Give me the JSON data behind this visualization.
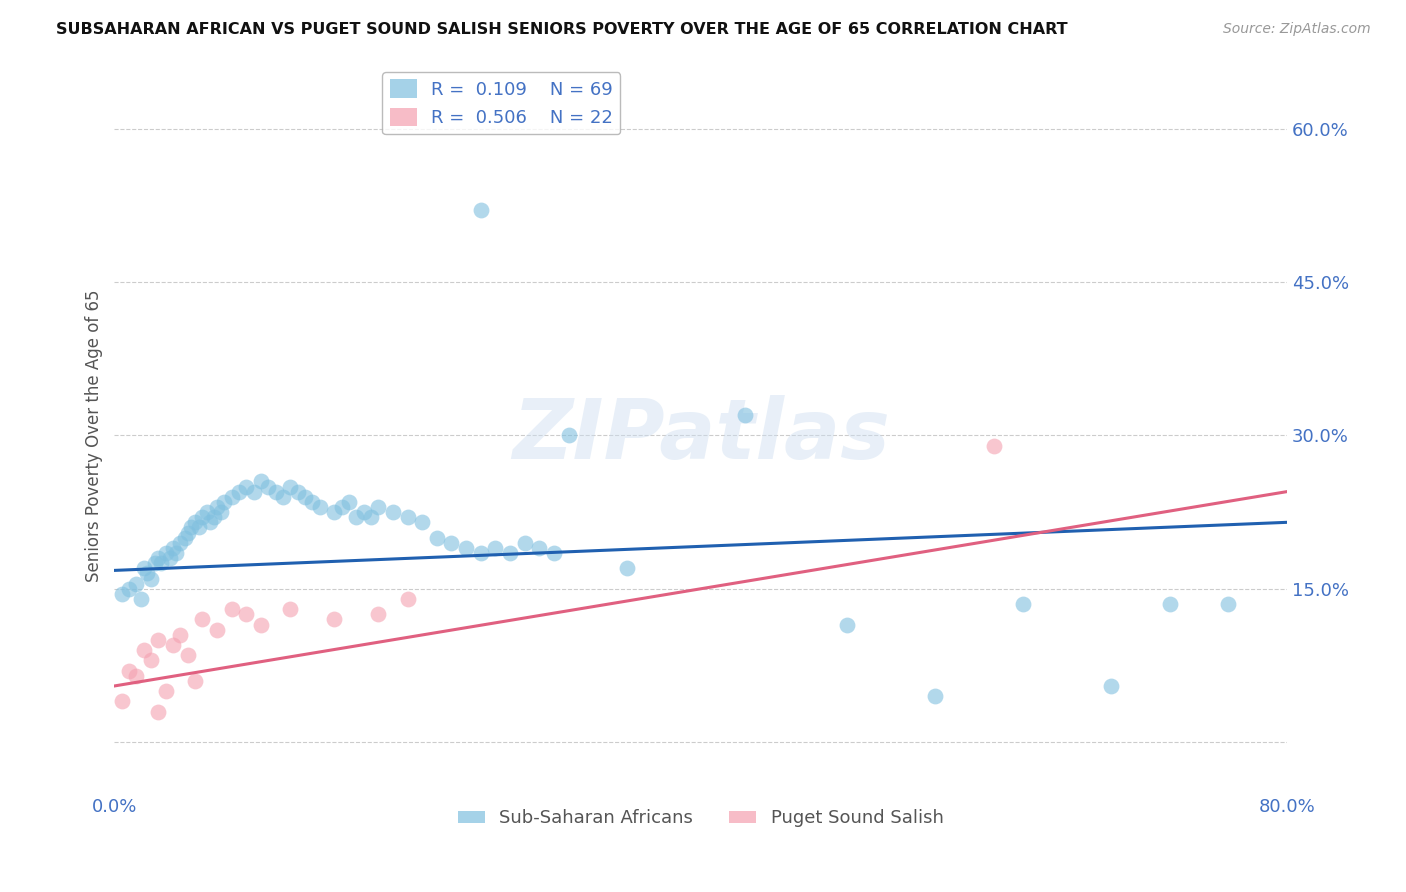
{
  "title": "SUBSAHARAN AFRICAN VS PUGET SOUND SALISH SENIORS POVERTY OVER THE AGE OF 65 CORRELATION CHART",
  "source": "Source: ZipAtlas.com",
  "ylabel": "Seniors Poverty Over the Age of 65",
  "xlim": [
    0.0,
    0.8
  ],
  "ylim": [
    -0.05,
    0.65
  ],
  "yticks": [
    0.0,
    0.15,
    0.3,
    0.45,
    0.6
  ],
  "ytick_labels": [
    "",
    "15.0%",
    "30.0%",
    "45.0%",
    "60.0%"
  ],
  "xticks": [
    0.0,
    0.2,
    0.4,
    0.6,
    0.8
  ],
  "xtick_labels": [
    "0.0%",
    "",
    "",
    "",
    "80.0%"
  ],
  "blue_R": 0.109,
  "blue_N": 69,
  "pink_R": 0.506,
  "pink_N": 22,
  "blue_color": "#7fbfdf",
  "pink_color": "#f4a0b0",
  "line_blue": "#2060b0",
  "line_pink": "#e06080",
  "blue_scatter_x": [
    0.005,
    0.01,
    0.015,
    0.018,
    0.02,
    0.022,
    0.025,
    0.028,
    0.03,
    0.032,
    0.035,
    0.038,
    0.04,
    0.042,
    0.045,
    0.048,
    0.05,
    0.052,
    0.055,
    0.058,
    0.06,
    0.063,
    0.065,
    0.068,
    0.07,
    0.073,
    0.075,
    0.08,
    0.085,
    0.09,
    0.095,
    0.1,
    0.105,
    0.11,
    0.115,
    0.12,
    0.125,
    0.13,
    0.135,
    0.14,
    0.15,
    0.155,
    0.16,
    0.165,
    0.17,
    0.175,
    0.18,
    0.19,
    0.2,
    0.21,
    0.22,
    0.23,
    0.24,
    0.25,
    0.26,
    0.27,
    0.28,
    0.29,
    0.3,
    0.31,
    0.35,
    0.43,
    0.5,
    0.56,
    0.62,
    0.68,
    0.72,
    0.76,
    0.25
  ],
  "blue_scatter_y": [
    0.145,
    0.15,
    0.155,
    0.14,
    0.17,
    0.165,
    0.16,
    0.175,
    0.18,
    0.175,
    0.185,
    0.18,
    0.19,
    0.185,
    0.195,
    0.2,
    0.205,
    0.21,
    0.215,
    0.21,
    0.22,
    0.225,
    0.215,
    0.22,
    0.23,
    0.225,
    0.235,
    0.24,
    0.245,
    0.25,
    0.245,
    0.255,
    0.25,
    0.245,
    0.24,
    0.25,
    0.245,
    0.24,
    0.235,
    0.23,
    0.225,
    0.23,
    0.235,
    0.22,
    0.225,
    0.22,
    0.23,
    0.225,
    0.22,
    0.215,
    0.2,
    0.195,
    0.19,
    0.185,
    0.19,
    0.185,
    0.195,
    0.19,
    0.185,
    0.3,
    0.17,
    0.32,
    0.115,
    0.045,
    0.135,
    0.055,
    0.135,
    0.135,
    0.52
  ],
  "pink_scatter_x": [
    0.005,
    0.01,
    0.015,
    0.02,
    0.025,
    0.03,
    0.035,
    0.04,
    0.045,
    0.05,
    0.06,
    0.07,
    0.08,
    0.09,
    0.1,
    0.12,
    0.15,
    0.18,
    0.2,
    0.6,
    0.03,
    0.055
  ],
  "pink_scatter_y": [
    0.04,
    0.07,
    0.065,
    0.09,
    0.08,
    0.1,
    0.05,
    0.095,
    0.105,
    0.085,
    0.12,
    0.11,
    0.13,
    0.125,
    0.115,
    0.13,
    0.12,
    0.125,
    0.14,
    0.29,
    0.03,
    0.06
  ],
  "blue_line_x": [
    0.0,
    0.8
  ],
  "blue_line_y": [
    0.168,
    0.215
  ],
  "pink_line_x": [
    0.0,
    0.8
  ],
  "pink_line_y": [
    0.055,
    0.245
  ],
  "legend_label_blue": "Sub-Saharan Africans",
  "legend_label_pink": "Puget Sound Salish",
  "watermark": "ZIPatlas",
  "background_color": "#ffffff"
}
